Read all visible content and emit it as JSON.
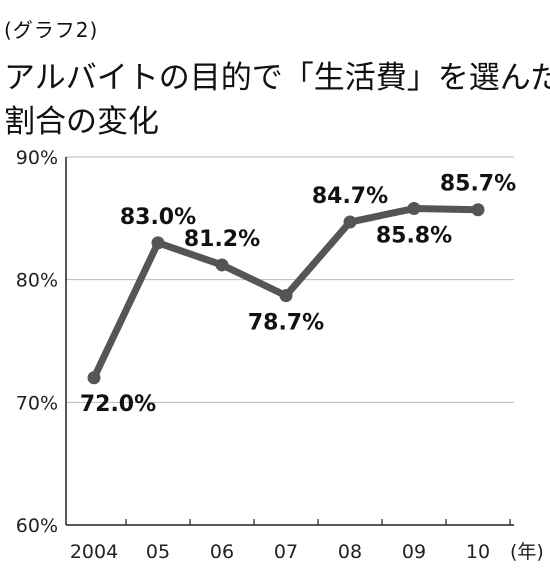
{
  "figure_label": "(グラフ2)",
  "title_lines": [
    "アルバイトの目的で「生活費」を選んだ",
    "割合の変化"
  ],
  "colors": {
    "line": "#555555",
    "grid": "#bbbbbb",
    "axis": "#222222",
    "text": "#111111"
  },
  "chart_data": {
    "type": "line",
    "title": "アルバイトの目的で「生活費」を選んだ割合の変化",
    "categories": [
      "2004",
      "05",
      "06",
      "07",
      "08",
      "09",
      "10"
    ],
    "x_unit": "(年)",
    "ylim": [
      60,
      90
    ],
    "yticks": [
      60,
      70,
      80,
      90
    ],
    "ytick_labels": [
      "60%",
      "70%",
      "80%",
      "90%"
    ],
    "grid": true,
    "series": [
      {
        "values": [
          72.0,
          83.0,
          81.2,
          78.7,
          84.7,
          85.8,
          85.7
        ],
        "labels": [
          "72.0%",
          "83.0%",
          "81.2%",
          "78.7%",
          "84.7%",
          "85.8%",
          "85.7%"
        ]
      }
    ]
  }
}
